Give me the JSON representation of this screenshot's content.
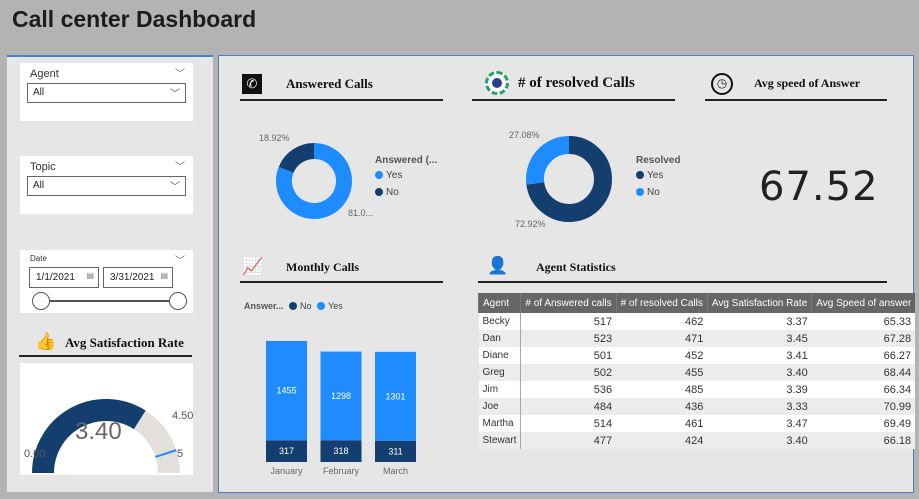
{
  "title": "Call center Dashboard",
  "colors": {
    "dark": "#133e6d",
    "light": "#1e8bff",
    "gauge_bg": "#e3e0db"
  },
  "filters": {
    "agent": {
      "label": "Agent",
      "value": "All"
    },
    "topic": {
      "label": "Topic",
      "value": "All"
    },
    "date": {
      "label": "Date",
      "start": "1/1/2021",
      "end": "3/31/2021"
    }
  },
  "satisfaction": {
    "title": "Avg Satisfaction Rate",
    "value": "3.40",
    "min": "0.00",
    "max": "5",
    "target": "4.50",
    "value_num": 3.4,
    "target_num": 4.5,
    "max_num": 5
  },
  "answered": {
    "title": "Answered Calls",
    "legend_title": "Answered (...",
    "items": [
      {
        "label": "Yes",
        "pct": 81.08,
        "text": "81.0..."
      },
      {
        "label": "No",
        "pct": 18.92,
        "text": "18.92%"
      }
    ]
  },
  "resolved": {
    "title": "# of resolved Calls",
    "legend_title": "Resolved",
    "items": [
      {
        "label": "Yes",
        "pct": 72.92,
        "text": "72.92%"
      },
      {
        "label": "No",
        "pct": 27.08,
        "text": "27.08%"
      }
    ]
  },
  "speed": {
    "title": "Avg speed of Answer",
    "value": "67.52"
  },
  "monthly": {
    "title": "Monthly Calls",
    "legend_title": "Answer...",
    "legend": [
      "No",
      "Yes"
    ],
    "chart_data": {
      "type": "bar",
      "stacked": true,
      "categories": [
        "January",
        "February",
        "March"
      ],
      "series": [
        {
          "name": "No",
          "values": [
            317,
            318,
            311
          ]
        },
        {
          "name": "Yes",
          "values": [
            1455,
            1298,
            1301
          ]
        }
      ]
    }
  },
  "agents": {
    "title": "Agent Statistics",
    "columns": [
      "Agent",
      "# of Answered calls",
      "# of resolved Calls",
      "Avg Satisfaction Rate",
      "Avg Speed of answer"
    ],
    "rows": [
      [
        "Becky",
        "517",
        "462",
        "3.37",
        "65.33"
      ],
      [
        "Dan",
        "523",
        "471",
        "3.45",
        "67.28"
      ],
      [
        "Diane",
        "501",
        "452",
        "3.41",
        "66.27"
      ],
      [
        "Greg",
        "502",
        "455",
        "3.40",
        "68.44"
      ],
      [
        "Jim",
        "536",
        "485",
        "3.39",
        "66.34"
      ],
      [
        "Joe",
        "484",
        "436",
        "3.33",
        "70.99"
      ],
      [
        "Martha",
        "514",
        "461",
        "3.47",
        "69.49"
      ],
      [
        "Stewart",
        "477",
        "424",
        "3.40",
        "66.18"
      ]
    ]
  }
}
